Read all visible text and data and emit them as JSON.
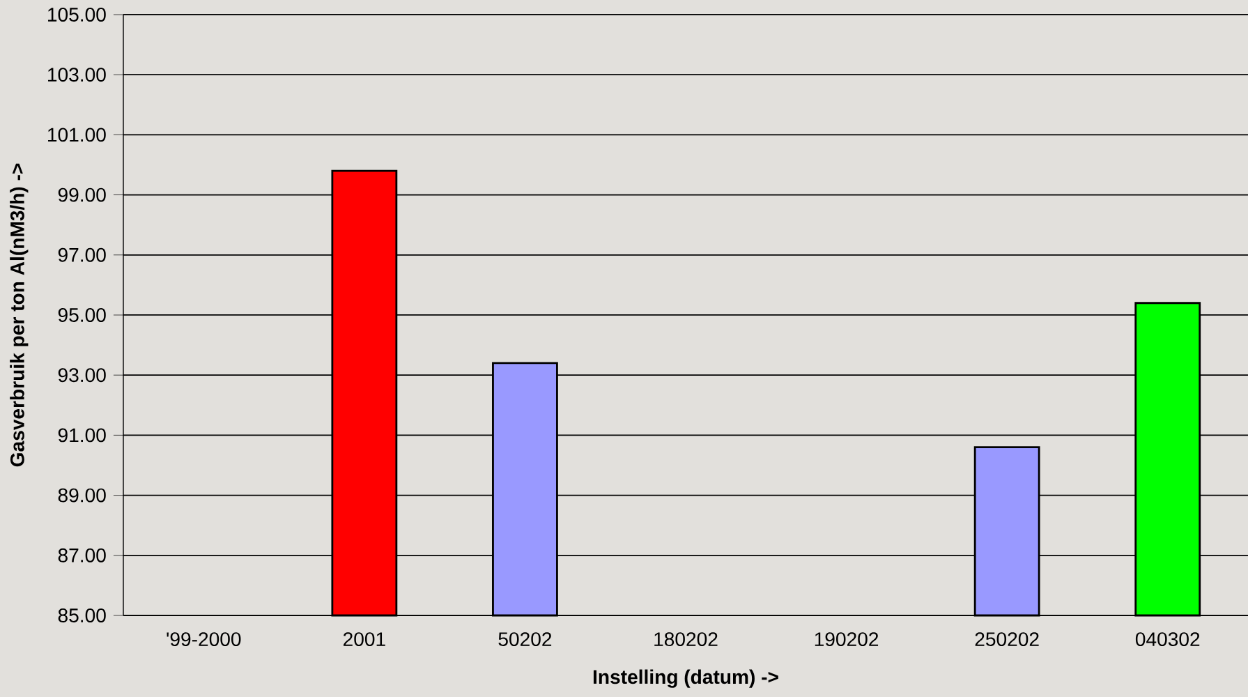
{
  "chart_data": {
    "type": "bar",
    "xlabel": "Instelling (datum) ->",
    "ylabel": "Gasverbruik per ton Al(nM3/h) ->",
    "categories": [
      "'99-2000",
      "2001",
      "50202",
      "180202",
      "190202",
      "250202",
      "040302"
    ],
    "values": [
      null,
      99.8,
      93.4,
      null,
      null,
      90.6,
      95.4
    ],
    "colors": [
      "#9999ff",
      "#ff0000",
      "#9999ff",
      "#9999ff",
      "#9999ff",
      "#9999ff",
      "#00ff00"
    ],
    "ylim": [
      85,
      105
    ],
    "yticks": [
      {
        "value": 85,
        "label": "85.00"
      },
      {
        "value": 87,
        "label": "87.00"
      },
      {
        "value": 89,
        "label": "89.00"
      },
      {
        "value": 91,
        "label": "91.00"
      },
      {
        "value": 93,
        "label": "93.00"
      },
      {
        "value": 95,
        "label": "95.00"
      },
      {
        "value": 97,
        "label": "97.00"
      },
      {
        "value": 99,
        "label": "99.00"
      },
      {
        "value": 101,
        "label": "101.00"
      },
      {
        "value": 103,
        "label": "103.00"
      },
      {
        "value": 105,
        "label": "105.00"
      }
    ],
    "grid": "y"
  }
}
